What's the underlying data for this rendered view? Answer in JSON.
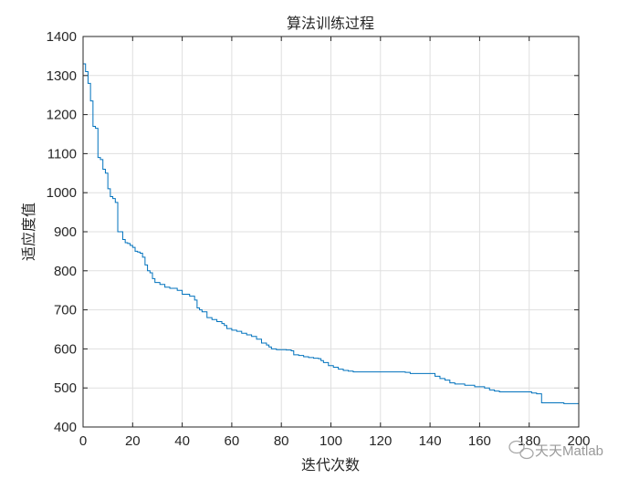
{
  "chart_data": {
    "type": "line",
    "title": "算法训练过程",
    "xlabel": "迭代次数",
    "ylabel": "适应度值",
    "xlim": [
      0,
      200
    ],
    "ylim": [
      400,
      1400
    ],
    "xticks": [
      0,
      20,
      40,
      60,
      80,
      100,
      120,
      140,
      160,
      180,
      200
    ],
    "yticks": [
      400,
      500,
      600,
      700,
      800,
      900,
      1000,
      1100,
      1200,
      1300,
      1400
    ],
    "grid": true,
    "line_color": "#0072BD",
    "step": true,
    "series": [
      {
        "values": [
          [
            0,
            1330
          ],
          [
            1,
            1310
          ],
          [
            2,
            1280
          ],
          [
            3,
            1235
          ],
          [
            4,
            1170
          ],
          [
            5,
            1165
          ],
          [
            6,
            1090
          ],
          [
            7,
            1085
          ],
          [
            8,
            1060
          ],
          [
            9,
            1050
          ],
          [
            10,
            1010
          ],
          [
            11,
            990
          ],
          [
            12,
            985
          ],
          [
            13,
            975
          ],
          [
            14,
            900
          ],
          [
            15,
            900
          ],
          [
            16,
            880
          ],
          [
            17,
            872
          ],
          [
            18,
            870
          ],
          [
            19,
            865
          ],
          [
            20,
            860
          ],
          [
            21,
            850
          ],
          [
            22,
            848
          ],
          [
            23,
            845
          ],
          [
            24,
            835
          ],
          [
            25,
            815
          ],
          [
            26,
            800
          ],
          [
            27,
            795
          ],
          [
            28,
            780
          ],
          [
            29,
            770
          ],
          [
            31,
            765
          ],
          [
            33,
            758
          ],
          [
            35,
            755
          ],
          [
            38,
            750
          ],
          [
            40,
            740
          ],
          [
            43,
            735
          ],
          [
            45,
            725
          ],
          [
            46,
            705
          ],
          [
            47,
            700
          ],
          [
            48,
            695
          ],
          [
            50,
            680
          ],
          [
            52,
            675
          ],
          [
            54,
            670
          ],
          [
            56,
            665
          ],
          [
            57,
            660
          ],
          [
            58,
            652
          ],
          [
            60,
            648
          ],
          [
            62,
            645
          ],
          [
            64,
            640
          ],
          [
            66,
            636
          ],
          [
            68,
            632
          ],
          [
            70,
            625
          ],
          [
            72,
            615
          ],
          [
            74,
            610
          ],
          [
            75,
            605
          ],
          [
            76,
            600
          ],
          [
            78,
            598
          ],
          [
            80,
            598
          ],
          [
            82,
            597
          ],
          [
            84,
            595
          ],
          [
            85,
            585
          ],
          [
            87,
            583
          ],
          [
            89,
            580
          ],
          [
            91,
            578
          ],
          [
            93,
            576
          ],
          [
            95,
            575
          ],
          [
            96,
            570
          ],
          [
            97,
            565
          ],
          [
            99,
            557
          ],
          [
            101,
            553
          ],
          [
            103,
            548
          ],
          [
            105,
            545
          ],
          [
            107,
            543
          ],
          [
            109,
            541
          ],
          [
            120,
            541
          ],
          [
            130,
            540
          ],
          [
            132,
            537
          ],
          [
            140,
            537
          ],
          [
            142,
            530
          ],
          [
            144,
            524
          ],
          [
            146,
            520
          ],
          [
            148,
            513
          ],
          [
            150,
            510
          ],
          [
            154,
            507
          ],
          [
            158,
            503
          ],
          [
            162,
            500
          ],
          [
            164,
            495
          ],
          [
            166,
            492
          ],
          [
            168,
            490
          ],
          [
            178,
            490
          ],
          [
            181,
            487
          ],
          [
            183,
            485
          ],
          [
            185,
            462
          ],
          [
            190,
            462
          ],
          [
            194,
            460
          ],
          [
            200,
            460
          ]
        ]
      }
    ]
  },
  "watermark": {
    "text": "天天Matlab"
  }
}
